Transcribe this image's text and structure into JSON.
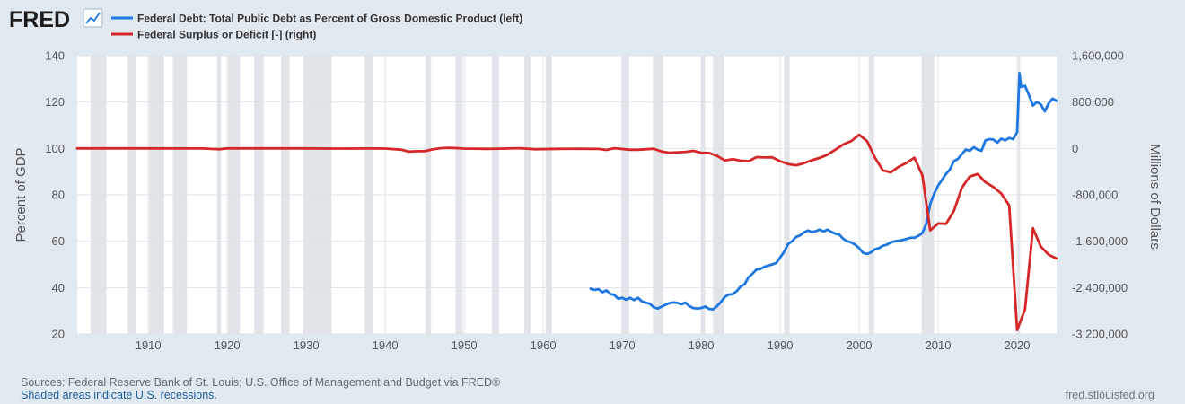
{
  "branding": {
    "logo_text": "FRED",
    "site_url": "fred.stlouisfed.org"
  },
  "footer": {
    "sources": "Sources: Federal Reserve Bank of St. Louis; U.S. Office of Management and Budget via FRED®",
    "note": "Shaded areas indicate U.S. recessions."
  },
  "chart_data": {
    "type": "line",
    "legend_placement": "top-left",
    "grid": true,
    "x_axis": {
      "range": [
        1901,
        2025
      ],
      "ticks": [
        "1910",
        "1920",
        "1930",
        "1940",
        "1950",
        "1960",
        "1970",
        "1980",
        "1990",
        "2000",
        "2010",
        "2020"
      ]
    },
    "y_left": {
      "label": "Percent of GDP",
      "range": [
        20,
        140
      ],
      "ticks": [
        "20",
        "40",
        "60",
        "80",
        "100",
        "120",
        "140"
      ]
    },
    "y_right": {
      "label": "Millions of Dollars",
      "range": [
        -3200000,
        1600000
      ],
      "ticks": [
        "-3,200,000",
        "-2,400,000",
        "-1,600,000",
        "-800,000",
        "0",
        "800,000",
        "1,600,000"
      ]
    },
    "recessions": [
      [
        1902.7,
        1904.7
      ],
      [
        1907.4,
        1908.5
      ],
      [
        1910.1,
        1912.0
      ],
      [
        1913.1,
        1914.9
      ],
      [
        1918.7,
        1919.2
      ],
      [
        1920.1,
        1921.6
      ],
      [
        1923.4,
        1924.6
      ],
      [
        1926.8,
        1927.9
      ],
      [
        1929.6,
        1933.2
      ],
      [
        1937.4,
        1938.5
      ],
      [
        1945.1,
        1945.8
      ],
      [
        1948.9,
        1949.8
      ],
      [
        1953.5,
        1954.4
      ],
      [
        1957.6,
        1958.4
      ],
      [
        1960.3,
        1961.1
      ],
      [
        1969.9,
        1970.9
      ],
      [
        1973.9,
        1975.2
      ],
      [
        1980.0,
        1980.5
      ],
      [
        1981.5,
        1982.9
      ],
      [
        1990.5,
        1991.2
      ],
      [
        2001.2,
        2001.9
      ],
      [
        2007.9,
        2009.5
      ],
      [
        2020.1,
        2020.4
      ]
    ],
    "series": [
      {
        "name": "Federal Debt: Total Public Debt as Percent of Gross Domestic Product (left)",
        "axis": "left",
        "color": "#1f77e0",
        "points": [
          [
            1966.0,
            39.5
          ],
          [
            1966.5,
            39.0
          ],
          [
            1967.0,
            39.3
          ],
          [
            1967.5,
            38.0
          ],
          [
            1968.0,
            38.8
          ],
          [
            1968.5,
            37.3
          ],
          [
            1969.0,
            36.8
          ],
          [
            1969.5,
            35.2
          ],
          [
            1970.0,
            35.6
          ],
          [
            1970.5,
            34.8
          ],
          [
            1971.0,
            35.6
          ],
          [
            1971.5,
            34.6
          ],
          [
            1972.0,
            35.6
          ],
          [
            1972.5,
            34.0
          ],
          [
            1973.0,
            33.5
          ],
          [
            1973.5,
            33.0
          ],
          [
            1974.0,
            31.5
          ],
          [
            1974.5,
            31.0
          ],
          [
            1975.0,
            31.8
          ],
          [
            1975.5,
            32.6
          ],
          [
            1976.0,
            33.3
          ],
          [
            1976.5,
            33.6
          ],
          [
            1977.0,
            33.4
          ],
          [
            1977.5,
            32.8
          ],
          [
            1978.0,
            33.5
          ],
          [
            1978.5,
            32.0
          ],
          [
            1979.0,
            31.2
          ],
          [
            1979.5,
            31.0
          ],
          [
            1980.0,
            31.2
          ],
          [
            1980.5,
            31.8
          ],
          [
            1981.0,
            30.8
          ],
          [
            1981.5,
            30.6
          ],
          [
            1982.0,
            32.0
          ],
          [
            1982.5,
            33.8
          ],
          [
            1983.0,
            36.0
          ],
          [
            1983.5,
            37.0
          ],
          [
            1984.0,
            37.2
          ],
          [
            1984.5,
            38.5
          ],
          [
            1985.0,
            40.5
          ],
          [
            1985.5,
            41.5
          ],
          [
            1986.0,
            44.5
          ],
          [
            1986.5,
            46.0
          ],
          [
            1987.0,
            47.8
          ],
          [
            1987.5,
            48.0
          ],
          [
            1988.0,
            49.0
          ],
          [
            1988.5,
            49.5
          ],
          [
            1989.0,
            50.0
          ],
          [
            1989.5,
            50.6
          ],
          [
            1990.0,
            53.0
          ],
          [
            1990.5,
            55.5
          ],
          [
            1991.0,
            58.8
          ],
          [
            1991.5,
            60.0
          ],
          [
            1992.0,
            61.8
          ],
          [
            1992.5,
            62.5
          ],
          [
            1993.0,
            63.8
          ],
          [
            1993.5,
            64.6
          ],
          [
            1994.0,
            64.0
          ],
          [
            1994.5,
            64.3
          ],
          [
            1995.0,
            65.0
          ],
          [
            1995.5,
            64.2
          ],
          [
            1996.0,
            65.0
          ],
          [
            1996.5,
            64.0
          ],
          [
            1997.0,
            63.2
          ],
          [
            1997.5,
            62.8
          ],
          [
            1998.0,
            61.0
          ],
          [
            1998.5,
            60.0
          ],
          [
            1999.0,
            59.5
          ],
          [
            1999.5,
            58.5
          ],
          [
            2000.0,
            57.0
          ],
          [
            2000.5,
            55.0
          ],
          [
            2001.0,
            54.5
          ],
          [
            2001.5,
            55.2
          ],
          [
            2002.0,
            56.5
          ],
          [
            2002.5,
            57.0
          ],
          [
            2003.0,
            58.0
          ],
          [
            2003.5,
            58.5
          ],
          [
            2004.0,
            59.5
          ],
          [
            2004.5,
            60.0
          ],
          [
            2005.0,
            60.2
          ],
          [
            2005.5,
            60.5
          ],
          [
            2006.0,
            61.0
          ],
          [
            2006.5,
            61.5
          ],
          [
            2007.0,
            61.5
          ],
          [
            2007.5,
            62.3
          ],
          [
            2008.0,
            63.5
          ],
          [
            2008.5,
            67.5
          ],
          [
            2009.0,
            76.0
          ],
          [
            2009.5,
            80.5
          ],
          [
            2010.0,
            84.0
          ],
          [
            2010.5,
            86.5
          ],
          [
            2011.0,
            89.0
          ],
          [
            2011.5,
            91.0
          ],
          [
            2012.0,
            94.5
          ],
          [
            2012.5,
            95.5
          ],
          [
            2013.0,
            97.5
          ],
          [
            2013.5,
            99.5
          ],
          [
            2014.0,
            99.0
          ],
          [
            2014.5,
            100.5
          ],
          [
            2015.0,
            99.5
          ],
          [
            2015.5,
            99.0
          ],
          [
            2016.0,
            103.5
          ],
          [
            2016.5,
            104.0
          ],
          [
            2017.0,
            103.8
          ],
          [
            2017.5,
            102.5
          ],
          [
            2018.0,
            104.2
          ],
          [
            2018.5,
            103.5
          ],
          [
            2019.0,
            104.5
          ],
          [
            2019.5,
            104.0
          ],
          [
            2020.0,
            107.0
          ],
          [
            2020.3,
            132.5
          ],
          [
            2020.5,
            126.5
          ],
          [
            2021.0,
            127.0
          ],
          [
            2021.5,
            123.0
          ],
          [
            2022.0,
            118.5
          ],
          [
            2022.5,
            120.0
          ],
          [
            2023.0,
            119.0
          ],
          [
            2023.5,
            116.0
          ],
          [
            2024.0,
            119.5
          ],
          [
            2024.5,
            121.5
          ],
          [
            2025.0,
            120.5
          ]
        ]
      },
      {
        "name": "Federal Surplus or Deficit [-] (right)",
        "axis": "right",
        "color": "#d62728",
        "points": [
          [
            1901,
            0
          ],
          [
            1905,
            0
          ],
          [
            1910,
            0
          ],
          [
            1917,
            -1000
          ],
          [
            1918,
            -9000
          ],
          [
            1919,
            -13000
          ],
          [
            1920,
            0
          ],
          [
            1925,
            1000
          ],
          [
            1930,
            1000
          ],
          [
            1933,
            -2600
          ],
          [
            1935,
            -2800
          ],
          [
            1938,
            -1000
          ],
          [
            1940,
            -2900
          ],
          [
            1942,
            -20500
          ],
          [
            1943,
            -54600
          ],
          [
            1944,
            -47600
          ],
          [
            1945,
            -47600
          ],
          [
            1946,
            -15900
          ],
          [
            1947,
            4000
          ],
          [
            1948,
            11800
          ],
          [
            1950,
            -3100
          ],
          [
            1953,
            -6500
          ],
          [
            1955,
            -3000
          ],
          [
            1957,
            3400
          ],
          [
            1959,
            -12800
          ],
          [
            1962,
            -7100
          ],
          [
            1964,
            -5900
          ],
          [
            1967,
            -8600
          ],
          [
            1968,
            -25200
          ],
          [
            1969,
            3200
          ],
          [
            1971,
            -23000
          ],
          [
            1972,
            -23400
          ],
          [
            1974,
            -6100
          ],
          [
            1975,
            -53200
          ],
          [
            1976,
            -73700
          ],
          [
            1978,
            -59200
          ],
          [
            1979,
            -40700
          ],
          [
            1980,
            -73800
          ],
          [
            1981,
            -79000
          ],
          [
            1982,
            -128000
          ],
          [
            1983,
            -207800
          ],
          [
            1984,
            -185400
          ],
          [
            1985,
            -212300
          ],
          [
            1986,
            -221200
          ],
          [
            1987,
            -149700
          ],
          [
            1988,
            -155200
          ],
          [
            1989,
            -152600
          ],
          [
            1990,
            -221000
          ],
          [
            1991,
            -269200
          ],
          [
            1992,
            -290300
          ],
          [
            1993,
            -255100
          ],
          [
            1994,
            -203200
          ],
          [
            1995,
            -164000
          ],
          [
            1996,
            -107400
          ],
          [
            1997,
            -21900
          ],
          [
            1998,
            69300
          ],
          [
            1999,
            125600
          ],
          [
            2000,
            236200
          ],
          [
            2001,
            128200
          ],
          [
            2002,
            -157800
          ],
          [
            2003,
            -377600
          ],
          [
            2004,
            -412700
          ],
          [
            2005,
            -318300
          ],
          [
            2006,
            -248200
          ],
          [
            2007,
            -160700
          ],
          [
            2008,
            -458600
          ],
          [
            2009,
            -1412700
          ],
          [
            2010,
            -1294400
          ],
          [
            2011,
            -1299600
          ],
          [
            2012,
            -1076600
          ],
          [
            2013,
            -679800
          ],
          [
            2014,
            -484600
          ],
          [
            2015,
            -442000
          ],
          [
            2016,
            -584700
          ],
          [
            2017,
            -665400
          ],
          [
            2018,
            -779100
          ],
          [
            2019,
            -983600
          ],
          [
            2020,
            -3132500
          ],
          [
            2021,
            -2775300
          ],
          [
            2022,
            -1375900
          ],
          [
            2023,
            -1694000
          ],
          [
            2024,
            -1832800
          ],
          [
            2025,
            -1900000
          ]
        ]
      }
    ]
  }
}
